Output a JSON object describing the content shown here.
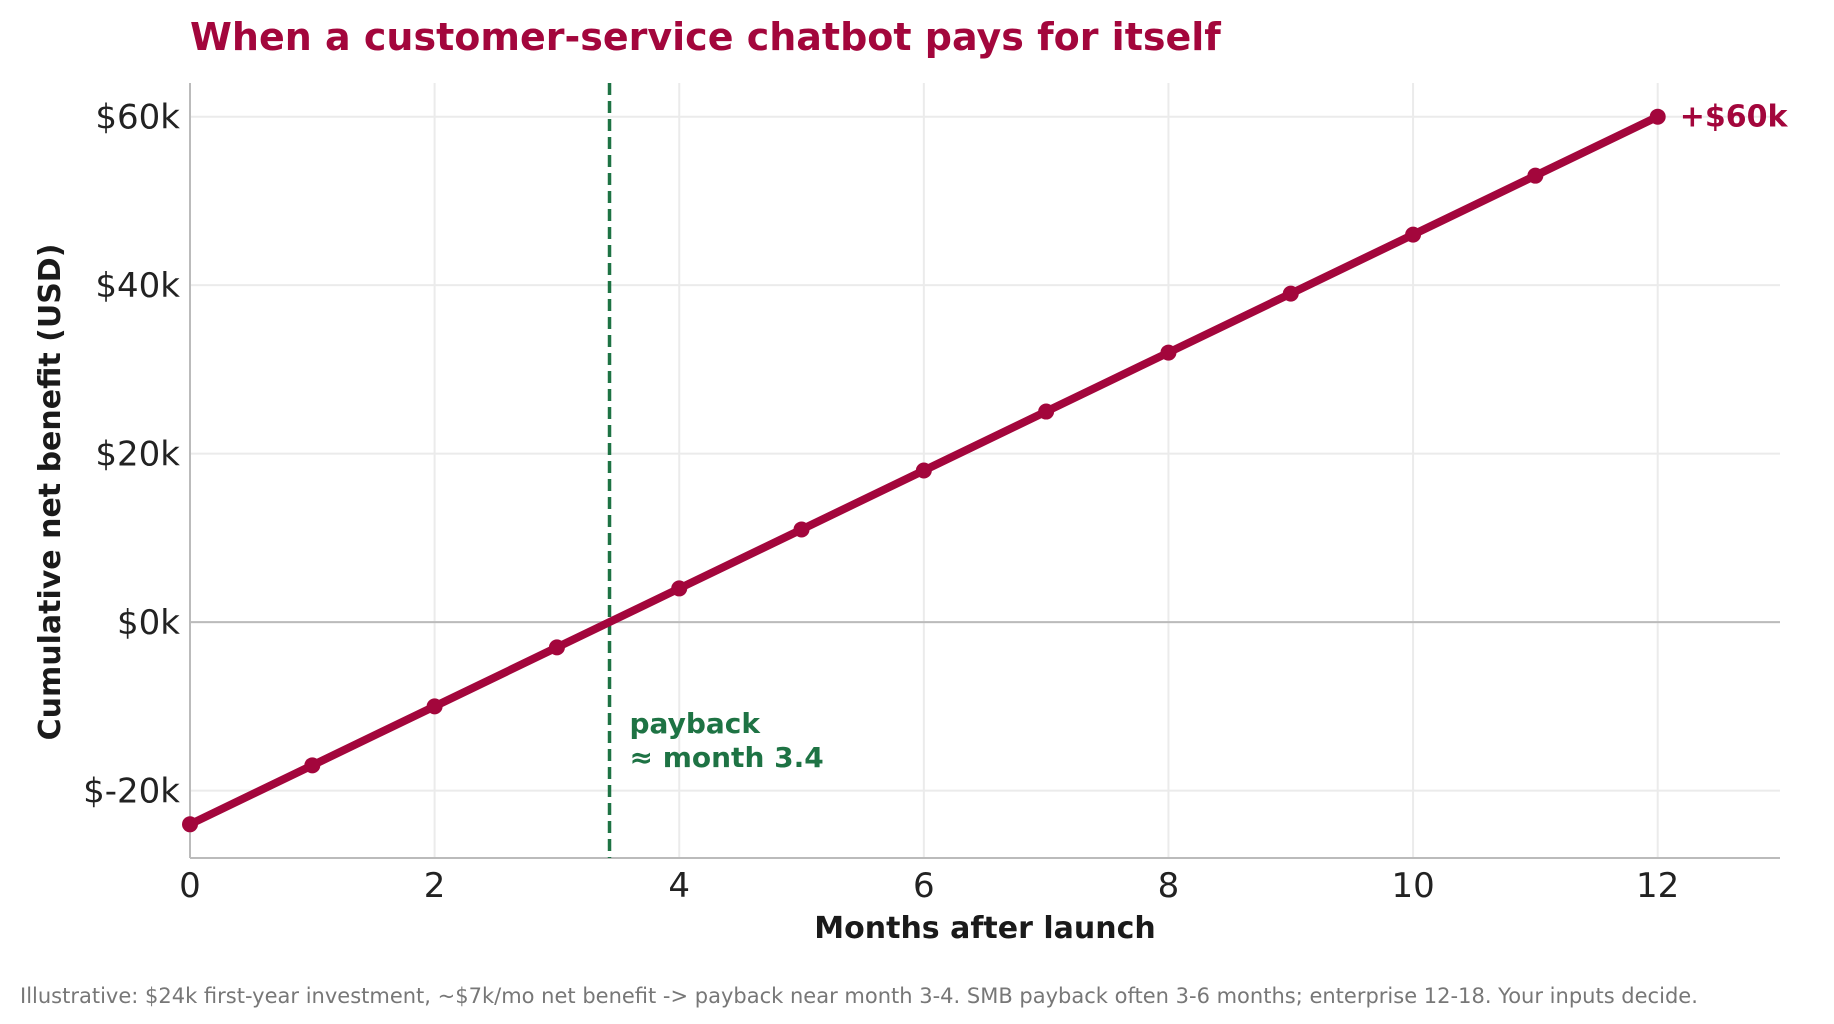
{
  "chart_data": {
    "type": "line",
    "title": "When a customer-service chatbot pays for itself",
    "xlabel": "Months after launch",
    "ylabel": "Cumulative net benefit (USD)",
    "xlim": [
      0,
      13
    ],
    "ylim": [
      -28000,
      64000
    ],
    "x_ticks": [
      0,
      2,
      4,
      6,
      8,
      10,
      12
    ],
    "x_tick_labels": [
      "0",
      "2",
      "4",
      "6",
      "8",
      "10",
      "12"
    ],
    "y_ticks": [
      -20000,
      0,
      20000,
      40000,
      60000
    ],
    "y_tick_labels": [
      "$-20k",
      "$0k",
      "$20k",
      "$40k",
      "$60k"
    ],
    "grid": true,
    "series": [
      {
        "x": [
          0,
          1,
          2,
          3,
          4,
          5,
          6,
          7,
          8,
          9,
          10,
          11,
          12
        ],
        "values": [
          -24000,
          -17000,
          -10000,
          -3000,
          4000,
          11000,
          18000,
          25000,
          32000,
          39000,
          46000,
          53000,
          60000
        ],
        "color": "#a3063c"
      }
    ],
    "payback_month": 3.43,
    "annotations": {
      "payback_line1": "payback",
      "payback_line2": "≈ month 3.4",
      "end_label": "+$60k"
    },
    "colors": {
      "title": "#a3063c",
      "line": "#a3063c",
      "payback": "#1e7344",
      "grid": "#ebebeb",
      "zero_line": "#bbbbbb",
      "axis": "#bbbbbb"
    }
  },
  "caption": "Illustrative: $24k first-year investment, ~$7k/mo net benefit -> payback near month 3-4. SMB payback often 3-6 months; enterprise 12-18. Your inputs decide."
}
